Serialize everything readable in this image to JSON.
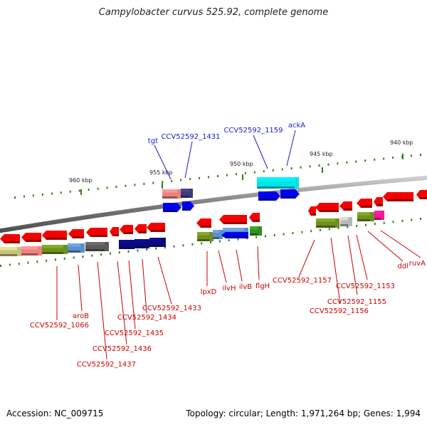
{
  "title": "Campylobacter curvus 525.92, complete genome",
  "accession": "Accession: NC_009715",
  "topology": "Topology: circular; Length: 1,971,264 bp; Genes: 1,994",
  "colors": {
    "backbone": "#7f7f7f",
    "tick": "#2e7d1a",
    "forward_label": "#1a1acd",
    "reverse_label": "#cc0000",
    "gene_red": "#f00000",
    "gene_blue": "#0000ee",
    "gene_navy": "#0a0a80",
    "gene_cyan": "#00e6e6",
    "gene_green": "#2f8f1f",
    "gene_olive": "#6f8f1f",
    "gene_khaki": "#c8c07a",
    "gene_salmon": "#f08080",
    "gene_steel": "#5b8fc8",
    "gene_gray": "#5a5a5a",
    "gene_lightgray": "#b8b8b8",
    "gene_purple": "#3d3d7a",
    "gene_magenta": "#ff1493"
  },
  "ticks": [
    {
      "label": "940 kbp"
    },
    {
      "label": "945 kbp"
    },
    {
      "label": "950 kbp"
    },
    {
      "label": "955 kbp"
    },
    {
      "label": "960 kbp"
    }
  ],
  "forward_labels": [
    {
      "text": "tgt"
    },
    {
      "text": "CCV52592_1431"
    },
    {
      "text": "CCV52592_1159"
    },
    {
      "text": "ackA"
    }
  ],
  "reverse_labels": [
    {
      "text": "aroB"
    },
    {
      "text": "CCV52592_1066"
    },
    {
      "text": "CCV52592_1437"
    },
    {
      "text": "CCV52592_1436"
    },
    {
      "text": "CCV52592_1435"
    },
    {
      "text": "CCV52592_1434"
    },
    {
      "text": "CCV52592_1433"
    },
    {
      "text": "lpxD"
    },
    {
      "text": "ilvH"
    },
    {
      "text": "ilvB"
    },
    {
      "text": "flgH"
    },
    {
      "text": "CCV52592_1157"
    },
    {
      "text": "CCV52592_1156"
    },
    {
      "text": "CCV52592_1155"
    },
    {
      "text": "CCV52592_1153"
    },
    {
      "text": "ddl"
    },
    {
      "text": "ruvA"
    }
  ]
}
